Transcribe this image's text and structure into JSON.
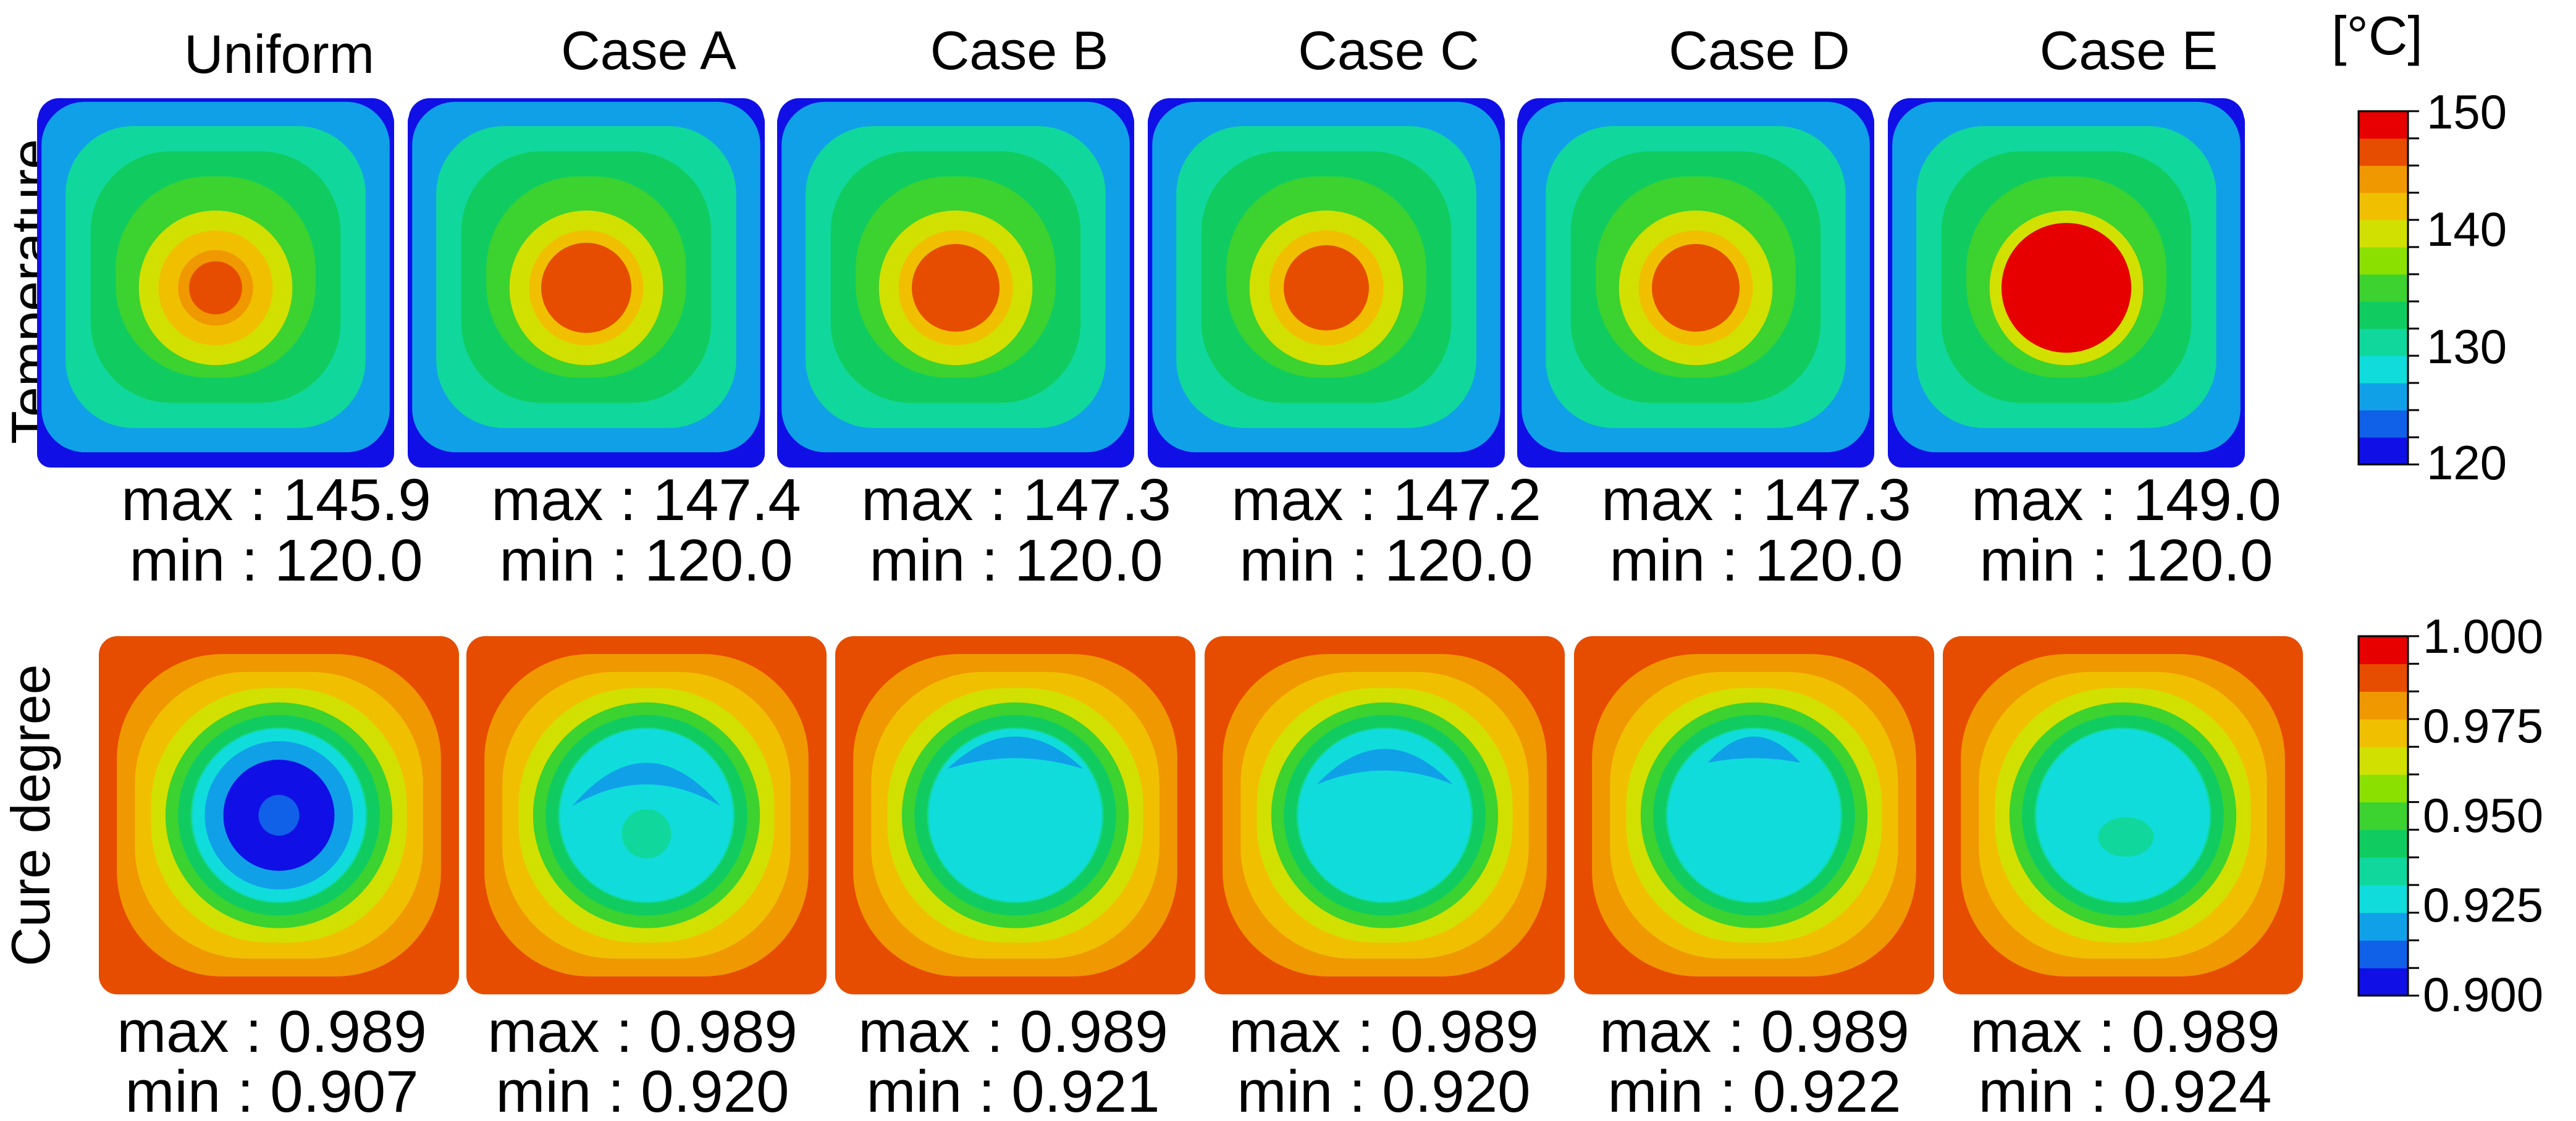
{
  "cases": [
    "Uniform",
    "Case A",
    "Case B",
    "Case C",
    "Case D",
    "Case E"
  ],
  "rows": [
    {
      "label": "Temperature",
      "unit": "[°C]",
      "colorbar": {
        "ticks": [
          "150",
          "140",
          "130",
          "120"
        ],
        "range": [
          120,
          150
        ],
        "colors": [
          "#e60000",
          "#e64d00",
          "#f09800",
          "#f0c000",
          "#d2e000",
          "#8ce000",
          "#3cd230",
          "#10cc60",
          "#10d89c",
          "#10dcdc",
          "#10a0e8",
          "#1060e8",
          "#1010e6"
        ]
      },
      "panels": [
        {
          "max_text": "max : 145.9",
          "min_text": "min : 120.0",
          "max": 145.9,
          "min": 120.0
        },
        {
          "max_text": "max : 147.4",
          "min_text": "min : 120.0",
          "max": 147.4,
          "min": 120.0
        },
        {
          "max_text": "max : 147.3",
          "min_text": "min : 120.0",
          "max": 147.3,
          "min": 120.0
        },
        {
          "max_text": "max : 147.2",
          "min_text": "min : 120.0",
          "max": 147.2,
          "min": 120.0
        },
        {
          "max_text": "max : 147.3",
          "min_text": "min : 120.0",
          "max": 147.3,
          "min": 120.0
        },
        {
          "max_text": "max : 149.0",
          "min_text": "min : 120.0",
          "max": 149.0,
          "min": 120.0
        }
      ]
    },
    {
      "label": "Cure degree",
      "unit": "",
      "colorbar": {
        "ticks": [
          "1.000",
          "0.975",
          "0.950",
          "0.925",
          "0.900"
        ],
        "range": [
          0.9,
          1.0
        ],
        "colors": [
          "#e60000",
          "#e64d00",
          "#f09800",
          "#f0c000",
          "#d2e000",
          "#8ce000",
          "#3cd230",
          "#10cc60",
          "#10d89c",
          "#10dcdc",
          "#10a0e8",
          "#1060e8",
          "#1010e6"
        ]
      },
      "panels": [
        {
          "max_text": "max : 0.989",
          "min_text": "min : 0.907",
          "max": 0.989,
          "min": 0.907
        },
        {
          "max_text": "max : 0.989",
          "min_text": "min : 0.920",
          "max": 0.989,
          "min": 0.92
        },
        {
          "max_text": "max : 0.989",
          "min_text": "min : 0.921",
          "max": 0.989,
          "min": 0.921
        },
        {
          "max_text": "max : 0.989",
          "min_text": "min : 0.920",
          "max": 0.989,
          "min": 0.92
        },
        {
          "max_text": "max : 0.989",
          "min_text": "min : 0.922",
          "max": 0.989,
          "min": 0.922
        },
        {
          "max_text": "max : 0.989",
          "min_text": "min : 0.924",
          "max": 0.989,
          "min": 0.924
        }
      ]
    }
  ]
}
